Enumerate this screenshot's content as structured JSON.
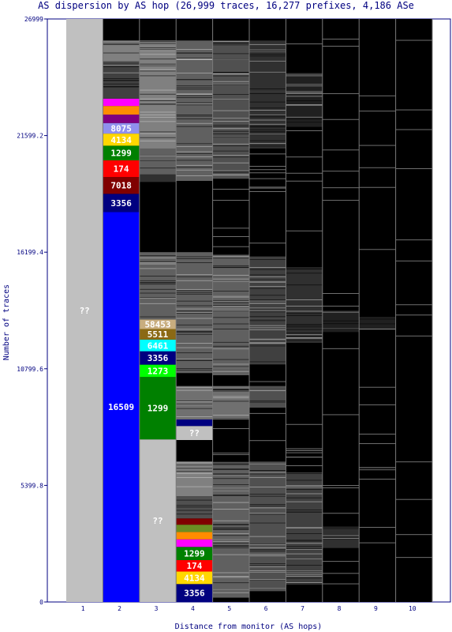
{
  "title": "AS dispersion by AS hop (26,999 traces, 16,277 prefixes, 4,186 ASe",
  "chart_data": {
    "type": "bar",
    "stacked": true,
    "xlabel": "Distance from monitor (AS hops)",
    "ylabel": "Number of traces",
    "ylim": [
      0,
      26999
    ],
    "y_ticks": [
      "0",
      "5399.8",
      "10799.6",
      "16199.4",
      "21599.2",
      "26999"
    ],
    "x_ticks": [
      "1",
      "2",
      "3",
      "4",
      "5",
      "6",
      "7",
      "8",
      "9",
      "10"
    ],
    "background_color": "#000000",
    "hops": [
      {
        "hop": "1",
        "segments": [
          {
            "label": "??",
            "start": 0,
            "end": 26999,
            "color": "#c0c0c0"
          }
        ]
      },
      {
        "hop": "2",
        "segments": [
          {
            "label": "16509",
            "start": 0,
            "end": 18060,
            "color": "#0000ff"
          },
          {
            "label": "3356",
            "start": 18060,
            "end": 18900,
            "color": "#000080"
          },
          {
            "label": "7018",
            "start": 18900,
            "end": 19680,
            "color": "#800000"
          },
          {
            "label": "174",
            "start": 19680,
            "end": 20450,
            "color": "#ff0000"
          },
          {
            "label": "1299",
            "start": 20450,
            "end": 21130,
            "color": "#008000"
          },
          {
            "label": "4134",
            "start": 21130,
            "end": 21690,
            "color": "#ffd700"
          },
          {
            "label": "8075",
            "start": 21690,
            "end": 22180,
            "color": "#9090ee"
          },
          {
            "label": "",
            "start": 22180,
            "end": 22570,
            "color": "#800080"
          },
          {
            "label": "",
            "start": 22570,
            "end": 22970,
            "color": "#ff8c00"
          },
          {
            "label": "",
            "start": 22970,
            "end": 23310,
            "color": "#ff00ff"
          },
          {
            "label": "",
            "start": 23310,
            "end": 25000,
            "color": "#404040"
          },
          {
            "label": "",
            "start": 25000,
            "end": 26000,
            "color": "#808080"
          }
        ]
      },
      {
        "hop": "3",
        "segments": [
          {
            "label": "??",
            "start": 0,
            "end": 7530,
            "color": "#c0c0c0"
          },
          {
            "label": "1299",
            "start": 7530,
            "end": 10420,
            "color": "#008000"
          },
          {
            "label": "1273",
            "start": 10420,
            "end": 10990,
            "color": "#00ff00"
          },
          {
            "label": "3356",
            "start": 10990,
            "end": 11610,
            "color": "#000080"
          },
          {
            "label": "6461",
            "start": 11610,
            "end": 12150,
            "color": "#00ffff"
          },
          {
            "label": "5511",
            "start": 12150,
            "end": 12640,
            "color": "#8b6914"
          },
          {
            "label": "58453",
            "start": 12640,
            "end": 13080,
            "color": "#c8ad7f"
          },
          {
            "label": "",
            "start": 13080,
            "end": 16200,
            "color": "#606060"
          },
          {
            "label": "",
            "start": 19450,
            "end": 19800,
            "color": "#303030"
          },
          {
            "label": "",
            "start": 19800,
            "end": 21000,
            "color": "#606060"
          },
          {
            "label": "",
            "start": 21000,
            "end": 26000,
            "color": "#808080"
          }
        ]
      },
      {
        "hop": "4",
        "segments": [
          {
            "label": "3356",
            "start": 0,
            "end": 830,
            "color": "#000080"
          },
          {
            "label": "4134",
            "start": 830,
            "end": 1410,
            "color": "#ffd700"
          },
          {
            "label": "174",
            "start": 1410,
            "end": 1940,
            "color": "#ff0000"
          },
          {
            "label": "1299",
            "start": 1940,
            "end": 2550,
            "color": "#008000"
          },
          {
            "label": "",
            "start": 2550,
            "end": 2900,
            "color": "#ff00ff"
          },
          {
            "label": "",
            "start": 2900,
            "end": 3240,
            "color": "#ff8c00"
          },
          {
            "label": "",
            "start": 3240,
            "end": 3580,
            "color": "#6b8e23"
          },
          {
            "label": "",
            "start": 3580,
            "end": 3870,
            "color": "#800000"
          },
          {
            "label": "",
            "start": 3870,
            "end": 4900,
            "color": "#505050"
          },
          {
            "label": "",
            "start": 4900,
            "end": 6500,
            "color": "#808080"
          },
          {
            "label": "??",
            "start": 7500,
            "end": 8150,
            "color": "#c0c0c0"
          },
          {
            "label": "",
            "start": 8150,
            "end": 8450,
            "color": "#000080"
          },
          {
            "label": "",
            "start": 8450,
            "end": 10000,
            "color": "#707070"
          },
          {
            "label": "",
            "start": 10600,
            "end": 16200,
            "color": "#606060"
          },
          {
            "label": "",
            "start": 19500,
            "end": 26000,
            "color": "#606060"
          }
        ]
      },
      {
        "hop": "5",
        "segments": [
          {
            "label": "",
            "start": 200,
            "end": 6500,
            "color": "#606060"
          },
          {
            "label": "",
            "start": 8500,
            "end": 10000,
            "color": "#707070"
          },
          {
            "label": "",
            "start": 10500,
            "end": 16100,
            "color": "#606060"
          },
          {
            "label": "",
            "start": 19600,
            "end": 26000,
            "color": "#505050"
          }
        ]
      },
      {
        "hop": "6",
        "segments": [
          {
            "label": "",
            "start": 500,
            "end": 6500,
            "color": "#505050"
          },
          {
            "label": "",
            "start": 9000,
            "end": 10000,
            "color": "#505050"
          },
          {
            "label": "",
            "start": 11000,
            "end": 16000,
            "color": "#404040"
          },
          {
            "label": "",
            "start": 21000,
            "end": 26000,
            "color": "#303030"
          }
        ]
      },
      {
        "hop": "7",
        "segments": [
          {
            "label": "",
            "start": 800,
            "end": 6000,
            "color": "#404040"
          },
          {
            "label": "",
            "start": 12000,
            "end": 15500,
            "color": "#303030"
          },
          {
            "label": "",
            "start": 22000,
            "end": 24500,
            "color": "#202020"
          }
        ]
      },
      {
        "hop": "8",
        "segments": [
          {
            "label": "",
            "start": 2500,
            "end": 3500,
            "color": "#303030"
          },
          {
            "label": "",
            "start": 12500,
            "end": 13500,
            "color": "#202020"
          }
        ]
      },
      {
        "hop": "9",
        "segments": [
          {
            "label": "",
            "start": 12600,
            "end": 13200,
            "color": "#202020"
          }
        ]
      },
      {
        "hop": "10",
        "segments": []
      }
    ]
  }
}
